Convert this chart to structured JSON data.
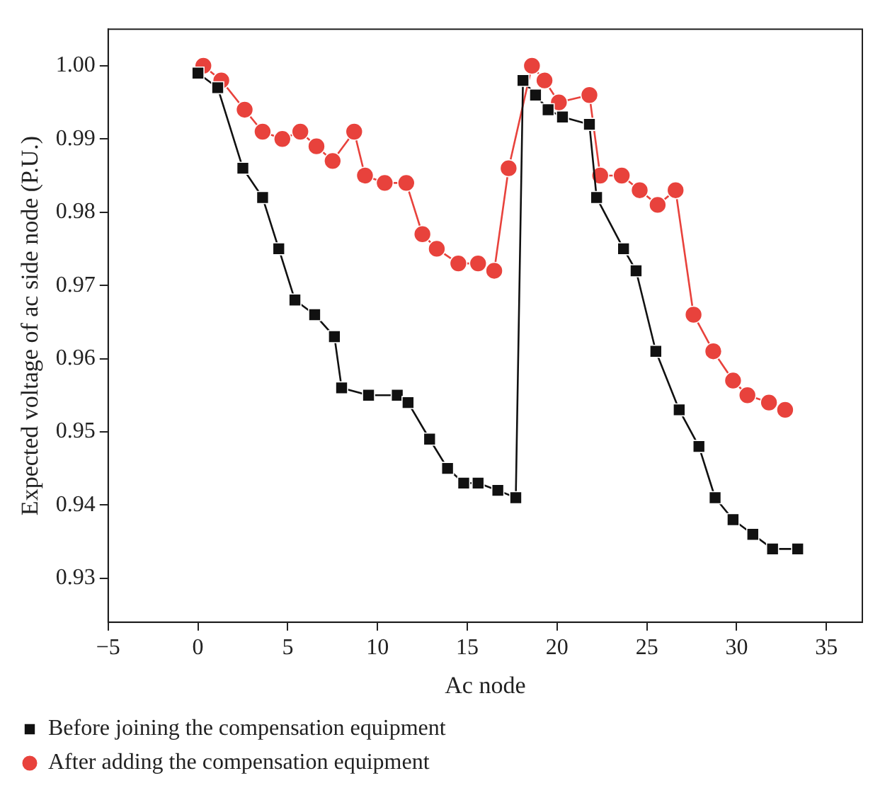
{
  "chart_data": {
    "type": "line",
    "xlabel": "Ac node",
    "ylabel": "Expected voltage of ac side node (P.U.)",
    "xlim": [
      -5,
      37
    ],
    "xticks": [
      -5,
      0,
      5,
      10,
      15,
      20,
      25,
      30,
      35
    ],
    "ylim": [
      0.924,
      1.005
    ],
    "yticks": [
      {
        "value": 0.93,
        "label": "0.93"
      },
      {
        "value": 0.94,
        "label": "0.94"
      },
      {
        "value": 0.95,
        "label": "0.95"
      },
      {
        "value": 0.96,
        "label": "0.96"
      },
      {
        "value": 0.97,
        "label": "0.97"
      },
      {
        "value": 0.98,
        "label": "0.98"
      },
      {
        "value": 0.99,
        "label": "0.99"
      },
      {
        "value": 1.0,
        "label": "1.00"
      }
    ],
    "grid": false,
    "legend": "bottom",
    "line_style": "solid",
    "series": [
      {
        "name": "Before joining the compensation equipment",
        "color": "#111111",
        "marker": "square",
        "x": [
          0,
          1.1,
          2.5,
          3.6,
          4.5,
          5.4,
          6.5,
          7.6,
          8.0,
          9.5,
          11.1,
          11.7,
          12.9,
          13.9,
          14.8,
          15.6,
          16.7,
          17.7,
          18.1,
          18.8,
          19.5,
          20.3,
          21.8,
          22.2,
          23.7,
          24.4,
          25.5,
          26.8,
          27.9,
          28.8,
          29.8,
          30.9,
          32.0,
          33.4
        ],
        "values": [
          0.999,
          0.997,
          0.986,
          0.982,
          0.975,
          0.968,
          0.966,
          0.963,
          0.956,
          0.955,
          0.955,
          0.954,
          0.949,
          0.945,
          0.943,
          0.943,
          0.942,
          0.941,
          0.998,
          0.996,
          0.994,
          0.993,
          0.992,
          0.982,
          0.975,
          0.972,
          0.961,
          0.953,
          0.948,
          0.941,
          0.938,
          0.936,
          0.934,
          0.934
        ]
      },
      {
        "name": "After adding the compensation equipment",
        "color": "#e8423c",
        "marker": "circle",
        "x": [
          0.3,
          1.3,
          2.6,
          3.6,
          4.7,
          5.7,
          6.6,
          7.5,
          8.7,
          9.3,
          10.4,
          11.6,
          12.5,
          13.3,
          14.5,
          15.6,
          16.5,
          17.3,
          18.6,
          19.3,
          20.1,
          21.8,
          22.4,
          23.6,
          24.6,
          25.6,
          26.6,
          27.6,
          28.7,
          29.8,
          30.6,
          31.8,
          32.7
        ],
        "values": [
          1.0,
          0.998,
          0.994,
          0.991,
          0.99,
          0.991,
          0.989,
          0.987,
          0.991,
          0.985,
          0.984,
          0.984,
          0.977,
          0.975,
          0.973,
          0.973,
          0.972,
          0.986,
          1.0,
          0.998,
          0.995,
          0.996,
          0.985,
          0.985,
          0.983,
          0.981,
          0.983,
          0.966,
          0.961,
          0.957,
          0.955,
          0.954,
          0.953
        ]
      }
    ]
  }
}
